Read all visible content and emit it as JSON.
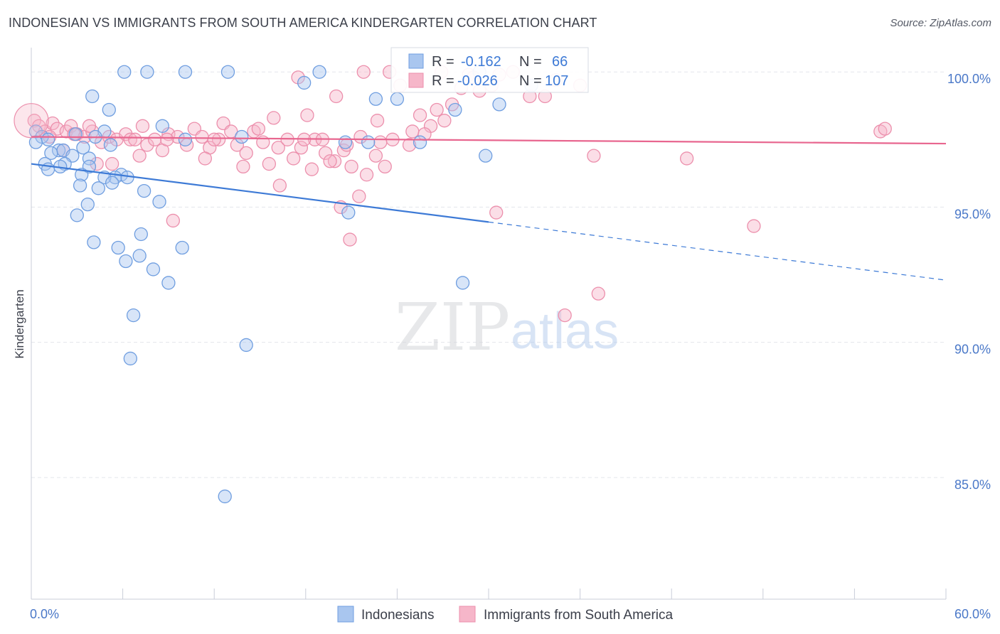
{
  "title": "INDONESIAN VS IMMIGRANTS FROM SOUTH AMERICA KINDERGARTEN CORRELATION CHART",
  "source": "Source: ZipAtlas.com",
  "watermark": {
    "zip": "ZIP",
    "atlas": "atlas"
  },
  "colors": {
    "blue_fill": "#a9c6ef",
    "blue_stroke": "#6f9ee0",
    "blue_line": "#3d7ad6",
    "pink_fill": "#f6b6c9",
    "pink_stroke": "#ec8fac",
    "pink_line": "#e8668f",
    "grid": "#e3e6ec",
    "axis_text": "#4a78c8",
    "text_dark": "#3b3f4a"
  },
  "stats": [
    {
      "r_label": "R =",
      "r_value": "-0.162",
      "n_label": "N =",
      "n_value": "66",
      "color": "blue"
    },
    {
      "r_label": "R =",
      "r_value": "-0.026",
      "n_label": "N =",
      "n_value": "107",
      "color": "pink"
    }
  ],
  "chart_data": {
    "type": "scatter",
    "title": "INDONESIAN VS IMMIGRANTS FROM SOUTH AMERICA KINDERGARTEN CORRELATION CHART",
    "xlabel": "",
    "ylabel": "Kindergarten",
    "xlim": [
      0,
      60
    ],
    "ylim": [
      80.5,
      100.9
    ],
    "x_tick_labels": [
      "0.0%",
      "60.0%"
    ],
    "y_ticks": [
      85,
      90,
      95,
      100
    ],
    "y_tick_labels": [
      "85.0%",
      "90.0%",
      "95.0%",
      "100.0%"
    ],
    "grid": true,
    "legend_position": "bottom-center",
    "series": [
      {
        "name": "Indonesians",
        "color": "blue",
        "trend": {
          "x0": 0,
          "y0": 96.6,
          "x1": 30,
          "y1": 94.45,
          "x_dashed_end": 60,
          "y_dashed_end": 92.3
        },
        "points": [
          [
            6.1,
            100.0
          ],
          [
            7.6,
            100.0
          ],
          [
            10.1,
            100.0
          ],
          [
            12.9,
            100.0
          ],
          [
            18.9,
            100.0
          ],
          [
            4.0,
            99.1
          ],
          [
            5.1,
            98.6
          ],
          [
            0.3,
            97.8
          ],
          [
            0.7,
            97.6
          ],
          [
            0.3,
            97.4
          ],
          [
            1.1,
            97.5
          ],
          [
            2.9,
            97.7
          ],
          [
            4.8,
            97.8
          ],
          [
            4.2,
            97.6
          ],
          [
            8.6,
            98.0
          ],
          [
            10.1,
            97.5
          ],
          [
            5.2,
            97.3
          ],
          [
            3.4,
            97.2
          ],
          [
            1.8,
            97.1
          ],
          [
            2.1,
            97.1
          ],
          [
            1.3,
            97.0
          ],
          [
            2.7,
            96.9
          ],
          [
            3.8,
            96.8
          ],
          [
            0.9,
            96.6
          ],
          [
            2.2,
            96.6
          ],
          [
            3.8,
            96.5
          ],
          [
            1.1,
            96.4
          ],
          [
            1.9,
            96.5
          ],
          [
            3.3,
            96.2
          ],
          [
            5.9,
            96.2
          ],
          [
            5.5,
            96.1
          ],
          [
            6.3,
            96.1
          ],
          [
            4.8,
            96.1
          ],
          [
            5.3,
            95.9
          ],
          [
            3.2,
            95.8
          ],
          [
            4.4,
            95.7
          ],
          [
            7.4,
            95.6
          ],
          [
            8.4,
            95.2
          ],
          [
            3.7,
            95.1
          ],
          [
            3.0,
            94.7
          ],
          [
            7.2,
            94.0
          ],
          [
            4.1,
            93.7
          ],
          [
            5.7,
            93.5
          ],
          [
            9.9,
            93.5
          ],
          [
            7.1,
            93.2
          ],
          [
            6.2,
            93.0
          ],
          [
            8.0,
            92.7
          ],
          [
            9.0,
            92.2
          ],
          [
            6.7,
            91.0
          ],
          [
            6.5,
            89.4
          ],
          [
            14.1,
            89.9
          ],
          [
            12.7,
            84.3
          ],
          [
            20.6,
            97.4
          ],
          [
            22.1,
            97.4
          ],
          [
            25.5,
            97.4
          ],
          [
            29.4,
            100.0
          ],
          [
            32.8,
            99.5
          ],
          [
            17.9,
            99.6
          ],
          [
            22.6,
            99.0
          ],
          [
            29.8,
            96.9
          ],
          [
            27.8,
            98.6
          ],
          [
            20.8,
            94.8
          ],
          [
            28.3,
            92.2
          ],
          [
            24.0,
            99.0
          ],
          [
            30.7,
            98.8
          ],
          [
            13.8,
            97.6
          ]
        ]
      },
      {
        "name": "Immigrants from South America",
        "color": "pink",
        "trend": {
          "x0": 0,
          "y0": 97.6,
          "x1": 60,
          "y1": 97.35
        },
        "points": [
          [
            0.2,
            98.2
          ],
          [
            0.5,
            98.0
          ],
          [
            0.9,
            97.8
          ],
          [
            1.4,
            98.1
          ],
          [
            1.7,
            97.9
          ],
          [
            2.3,
            97.8
          ],
          [
            2.6,
            98.0
          ],
          [
            3.0,
            97.7
          ],
          [
            3.5,
            97.6
          ],
          [
            4.0,
            97.8
          ],
          [
            4.6,
            97.4
          ],
          [
            5.1,
            97.6
          ],
          [
            5.6,
            97.5
          ],
          [
            6.2,
            97.7
          ],
          [
            6.5,
            97.5
          ],
          [
            7.3,
            98.0
          ],
          [
            7.6,
            97.3
          ],
          [
            8.1,
            97.5
          ],
          [
            8.6,
            97.1
          ],
          [
            9.0,
            97.7
          ],
          [
            9.6,
            97.6
          ],
          [
            10.2,
            97.3
          ],
          [
            10.7,
            97.9
          ],
          [
            11.2,
            97.6
          ],
          [
            11.7,
            97.2
          ],
          [
            12.3,
            97.5
          ],
          [
            12.6,
            98.1
          ],
          [
            13.1,
            97.8
          ],
          [
            13.5,
            97.3
          ],
          [
            14.1,
            97.0
          ],
          [
            14.6,
            97.8
          ],
          [
            15.2,
            97.4
          ],
          [
            15.6,
            96.6
          ],
          [
            16.2,
            97.2
          ],
          [
            16.8,
            97.5
          ],
          [
            17.2,
            96.8
          ],
          [
            17.7,
            97.2
          ],
          [
            18.1,
            98.4
          ],
          [
            18.6,
            97.5
          ],
          [
            19.3,
            97.0
          ],
          [
            19.9,
            96.7
          ],
          [
            20.5,
            97.1
          ],
          [
            21.0,
            96.5
          ],
          [
            21.6,
            97.6
          ],
          [
            22.0,
            96.2
          ],
          [
            22.7,
            98.2
          ],
          [
            23.2,
            96.5
          ],
          [
            23.7,
            97.5
          ],
          [
            24.2,
            99.5
          ],
          [
            25.0,
            97.8
          ],
          [
            25.5,
            98.4
          ],
          [
            26.2,
            98.0
          ],
          [
            26.6,
            98.6
          ],
          [
            27.1,
            98.2
          ],
          [
            27.6,
            98.8
          ],
          [
            28.2,
            99.4
          ],
          [
            28.7,
            99.9
          ],
          [
            29.4,
            99.3
          ],
          [
            30.2,
            99.5
          ],
          [
            30.7,
            99.9
          ],
          [
            31.6,
            100.0
          ],
          [
            32.7,
            99.1
          ],
          [
            34.4,
            99.7
          ],
          [
            33.7,
            99.1
          ],
          [
            2.1,
            97.1
          ],
          [
            3.8,
            98.0
          ],
          [
            5.3,
            96.6
          ],
          [
            7.1,
            96.9
          ],
          [
            9.3,
            94.5
          ],
          [
            11.4,
            96.8
          ],
          [
            13.9,
            96.5
          ],
          [
            16.3,
            95.8
          ],
          [
            18.4,
            96.4
          ],
          [
            19.6,
            96.7
          ],
          [
            20.3,
            95.0
          ],
          [
            21.5,
            95.4
          ],
          [
            22.6,
            96.9
          ],
          [
            24.8,
            97.3
          ],
          [
            17.5,
            99.8
          ],
          [
            20.0,
            99.1
          ],
          [
            21.8,
            100.0
          ],
          [
            23.5,
            100.0
          ],
          [
            26.9,
            100.0
          ],
          [
            29.0,
            99.8
          ],
          [
            20.9,
            93.8
          ],
          [
            30.5,
            94.8
          ],
          [
            36.0,
            99.5
          ],
          [
            37.2,
            91.8
          ],
          [
            35.0,
            91.0
          ],
          [
            36.9,
            96.9
          ],
          [
            43.0,
            96.8
          ],
          [
            47.4,
            94.3
          ],
          [
            55.7,
            97.8
          ],
          [
            56.0,
            97.9
          ],
          [
            1.2,
            97.6
          ],
          [
            2.8,
            97.7
          ],
          [
            4.3,
            96.6
          ],
          [
            6.8,
            97.5
          ],
          [
            8.9,
            97.5
          ],
          [
            12.0,
            97.5
          ],
          [
            14.9,
            97.9
          ],
          [
            15.9,
            98.3
          ],
          [
            17.9,
            97.5
          ],
          [
            19.1,
            97.5
          ],
          [
            20.7,
            97.3
          ],
          [
            22.9,
            97.4
          ],
          [
            25.8,
            97.7
          ]
        ]
      }
    ]
  }
}
